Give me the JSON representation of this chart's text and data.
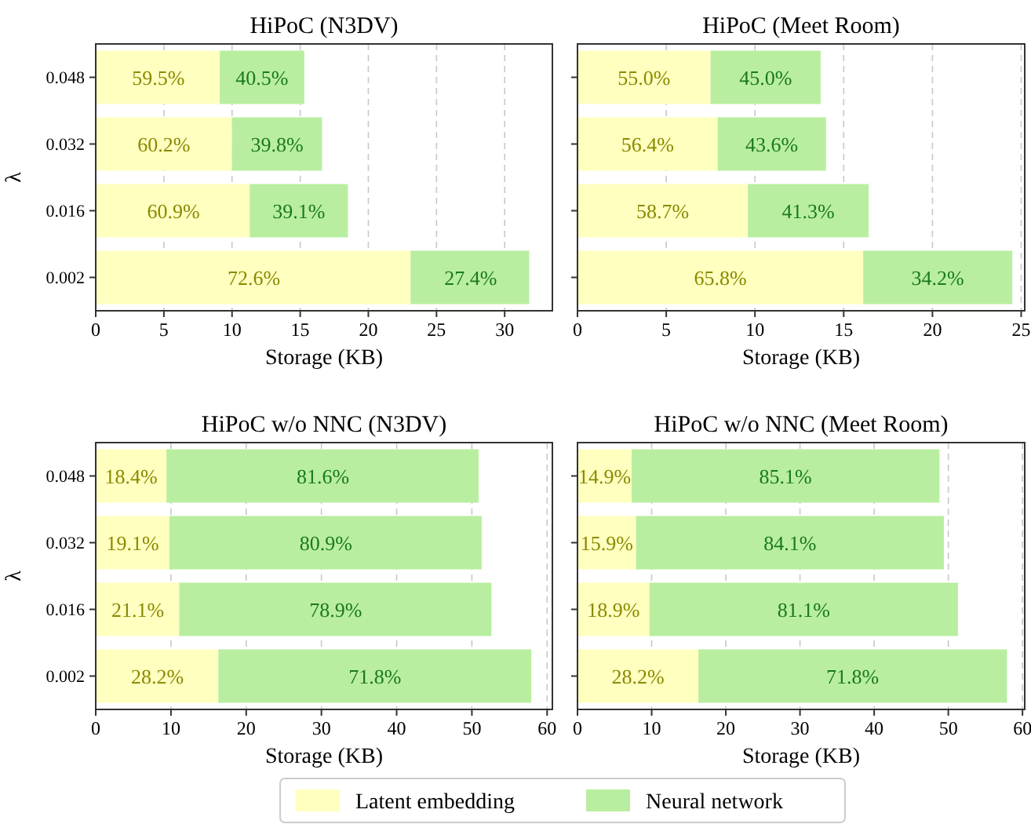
{
  "chart_data": [
    {
      "type": "bar",
      "orientation": "horizontal",
      "stacked": true,
      "title": "HiPoC (N3DV)",
      "xlabel": "Storage (KB)",
      "ylabel": "λ",
      "categories": [
        "0.048",
        "0.032",
        "0.016",
        "0.002"
      ],
      "xlim": [
        0,
        33.5
      ],
      "xticks": [
        0,
        5,
        10,
        15,
        20,
        25,
        30
      ],
      "grid": "x",
      "legend": "bottom",
      "series": [
        {
          "name": "Latent embedding",
          "color": "#ffffc0",
          "values": [
            9.1,
            10.0,
            11.3,
            23.1
          ]
        },
        {
          "name": "Neural network",
          "color": "#b9eea0",
          "values": [
            6.2,
            6.6,
            7.2,
            8.7
          ]
        }
      ],
      "annotations": [
        {
          "text": "59.5%",
          "x": 4.6,
          "y": "0.048"
        },
        {
          "text": "60.2%",
          "x": 5.0,
          "y": "0.032"
        },
        {
          "text": "60.9%",
          "x": 5.7,
          "y": "0.016"
        },
        {
          "text": "72.6%",
          "x": 11.6,
          "y": "0.002"
        },
        {
          "text": "40.5%",
          "x": 12.2,
          "y": "0.048"
        },
        {
          "text": "39.8%",
          "x": 13.3,
          "y": "0.032"
        },
        {
          "text": "39.1%",
          "x": 14.9,
          "y": "0.016"
        },
        {
          "text": "27.4%",
          "x": 27.5,
          "y": "0.002"
        }
      ]
    },
    {
      "type": "bar",
      "orientation": "horizontal",
      "stacked": true,
      "title": "HiPoC (Meet Room)",
      "xlabel": "Storage (KB)",
      "categories": [
        "0.048",
        "0.032",
        "0.016",
        "0.002"
      ],
      "xlim": [
        0,
        25.2
      ],
      "xticks": [
        0,
        5,
        10,
        15,
        20,
        25
      ],
      "grid": "x",
      "tick_labels": "x",
      "series": [
        {
          "name": "Latent embedding",
          "color": "#ffffc0",
          "values": [
            7.5,
            7.9,
            9.6,
            16.1
          ]
        },
        {
          "name": "Neural network",
          "color": "#b9eea0",
          "values": [
            6.2,
            6.1,
            6.8,
            8.4
          ]
        }
      ],
      "annotations": [
        "55.0%",
        "56.4%",
        "58.7%",
        "65.8%",
        "45.0%",
        "43.6%",
        "41.3%",
        "34.2%"
      ]
    },
    {
      "type": "bar",
      "orientation": "horizontal",
      "stacked": true,
      "title": "HiPoC w/o NNC (N3DV)",
      "xlabel": "Storage (KB)",
      "ylabel": "λ",
      "categories": [
        "0.048",
        "0.032",
        "0.016",
        "0.002"
      ],
      "xlim": [
        0,
        60.7
      ],
      "xticks": [
        0,
        10,
        20,
        30,
        40,
        50,
        60
      ],
      "grid": "x",
      "series": [
        {
          "name": "Latent embedding",
          "color": "#ffffc0",
          "values": [
            9.4,
            9.8,
            11.1,
            16.3
          ]
        },
        {
          "name": "Neural network",
          "color": "#b9eea0",
          "values": [
            41.5,
            41.5,
            41.5,
            41.6
          ]
        }
      ],
      "annotations": [
        {
          "text": "18.4%",
          "x": 4.7,
          "y": "0.048"
        },
        {
          "text": "19.1%",
          "x": 4.9,
          "y": "0.032"
        },
        {
          "text": "21.1%",
          "x": 5.6,
          "y": "0.016"
        },
        {
          "text": "28.2%",
          "x": 8.2,
          "y": "0.002"
        },
        {
          "text": "81.6%",
          "x": 30.2,
          "y": "0.048"
        },
        {
          "text": "80.9%",
          "x": 30.6,
          "y": "0.032"
        },
        {
          "text": "78.9%",
          "x": 31.9,
          "y": "0.016"
        },
        {
          "text": "71.8%",
          "x": 37.1,
          "y": "0.002"
        }
      ]
    },
    {
      "type": "bar",
      "orientation": "horizontal",
      "stacked": true,
      "title": "HiPoC w/o NNC (Meet Room)",
      "xlabel": "Storage (KB)",
      "categories": [
        "0.048",
        "0.032",
        "0.016",
        "0.002"
      ],
      "xlim": [
        0,
        60.3
      ],
      "xticks": [
        0,
        10,
        20,
        30,
        40,
        50,
        60
      ],
      "grid": "x",
      "tick_labels": "x",
      "series": [
        {
          "name": "Latent embedding",
          "color": "#ffffc0",
          "values": [
            7.3,
            7.9,
            9.7,
            16.3
          ]
        },
        {
          "name": "Neural network",
          "color": "#b9eea0",
          "values": [
            41.5,
            41.5,
            41.6,
            41.6
          ]
        }
      ],
      "annotations": [
        "14.9%",
        "15.9%",
        "18.9%",
        "28.2%",
        "85.1%",
        "84.1%",
        "81.1%",
        "71.8%"
      ]
    }
  ]
}
